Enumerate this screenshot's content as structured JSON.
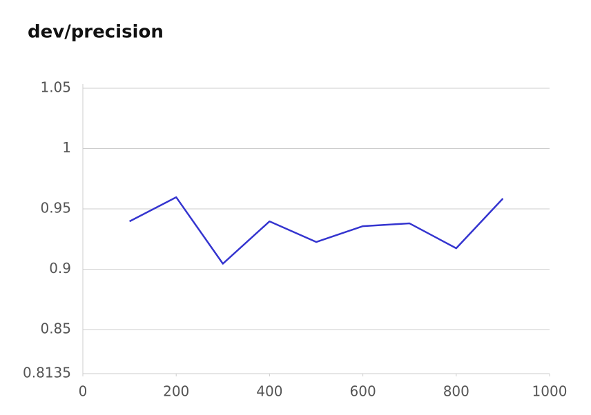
{
  "chart_data": {
    "type": "line",
    "title": "dev/precision",
    "x": [
      100,
      200,
      300,
      400,
      500,
      600,
      700,
      800,
      900
    ],
    "values": [
      0.9397,
      0.9597,
      0.9046,
      0.9397,
      0.9226,
      0.9357,
      0.938,
      0.9174,
      0.9586
    ],
    "color": "#3434cf",
    "xlim": [
      0,
      1000
    ],
    "xticks": [
      0,
      200,
      400,
      600,
      800,
      1000
    ],
    "ylim": [
      0.8135,
      1.05
    ],
    "yticks": [
      0.8135,
      0.85,
      0.9,
      0.95,
      1,
      1.05
    ],
    "grid": true
  }
}
